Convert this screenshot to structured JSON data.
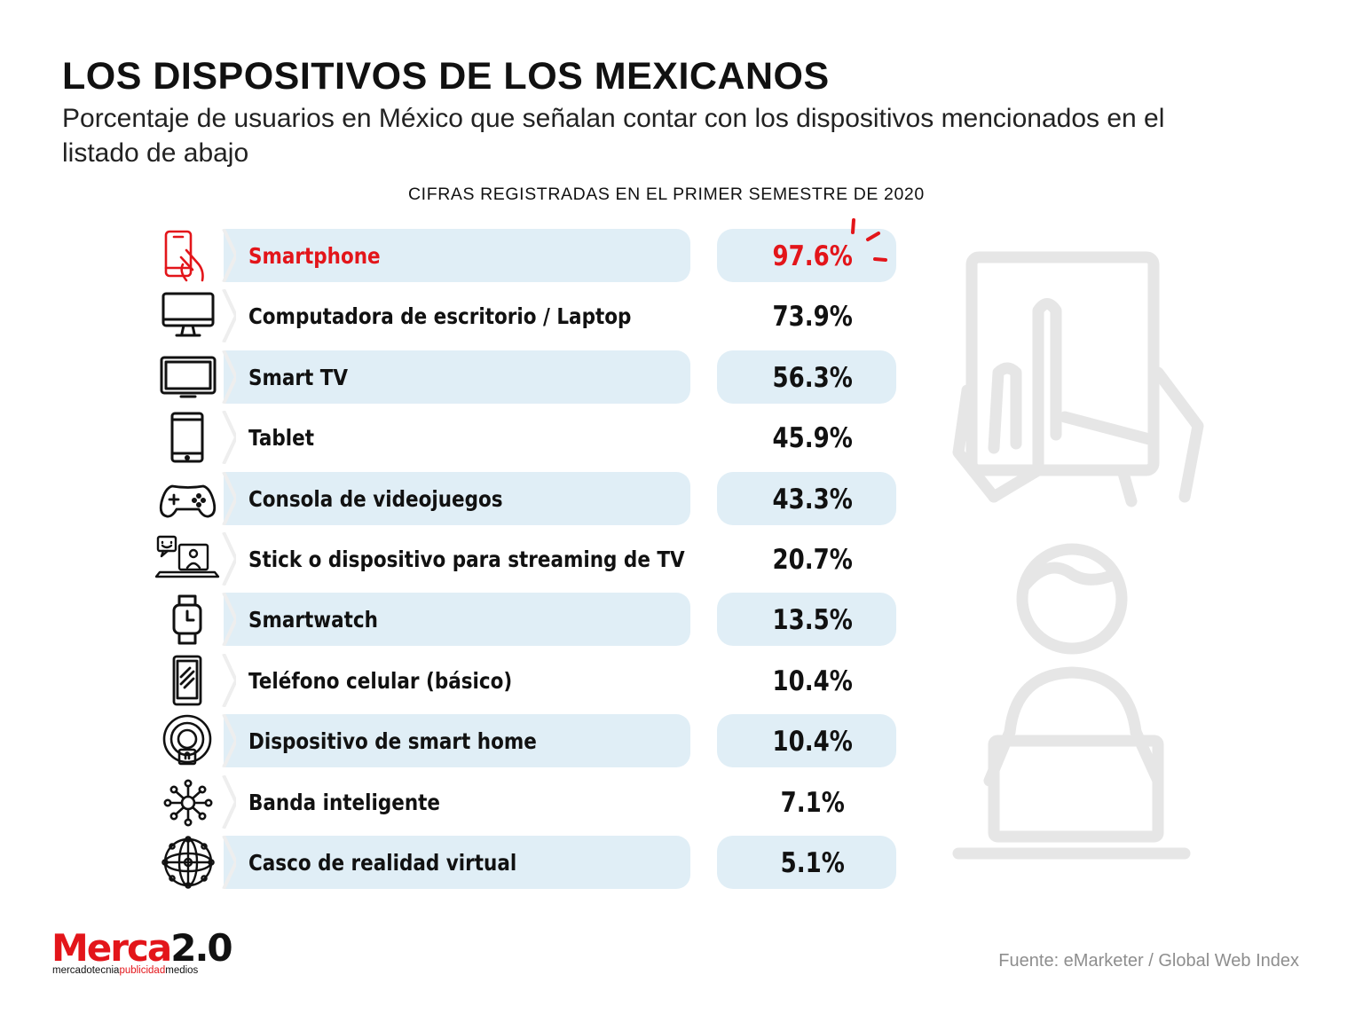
{
  "header": {
    "title": "LOS DISPOSITIVOS DE LOS MEXICANOS",
    "subtitle": "Porcentaje de usuarios en México que señalan contar con los dispositivos mencionados en el listado de abajo",
    "period": "CIFRAS REGISTRADAS EN EL PRIMER SEMESTRE DE 2020"
  },
  "chart_data": {
    "type": "table",
    "title": "LOS DISPOSITIVOS DE LOS MEXICANOS",
    "subtitle": "Porcentaje de usuarios en México que señalan contar con los dispositivos mencionados en el listado de abajo",
    "categories": [
      "Smartphone",
      "Computadora de escritorio / Laptop",
      "Smart TV",
      "Tablet",
      "Consola de videojuegos",
      "Stick o dispositivo para streaming de TV",
      "Smartwatch",
      "Teléfono celular (básico)",
      "Dispositivo de smart home",
      "Banda inteligente",
      "Casco de realidad virtual"
    ],
    "values": [
      97.6,
      73.9,
      56.3,
      45.9,
      43.3,
      20.7,
      13.5,
      10.4,
      10.4,
      7.1,
      5.1
    ],
    "value_labels": [
      "97.6%",
      "73.9%",
      "56.3%",
      "45.9%",
      "43.3%",
      "20.7%",
      "13.5%",
      "10.4%",
      "10.4%",
      "7.1%",
      "5.1%"
    ],
    "icons": [
      "smartphone-hand-icon",
      "desktop-monitor-icon",
      "tv-icon",
      "tablet-icon",
      "gamepad-icon",
      "streaming-laptop-icon",
      "smartwatch-icon",
      "basic-phone-icon",
      "smart-home-icon",
      "network-band-icon",
      "vr-sphere-icon"
    ],
    "highlight_index": 0
  },
  "colors": {
    "accent": "#e3151a",
    "row_shade": "#e0eef6",
    "illustration": "#e6e6e6",
    "source_text": "#8e8e8e"
  },
  "logo": {
    "main_red": "Merca",
    "main_dark": "2.0",
    "tag_a": "mercadotecnia",
    "tag_b": "publicidad",
    "tag_c": "medios"
  },
  "source": "Fuente:  eMarketer / Global Web Index"
}
